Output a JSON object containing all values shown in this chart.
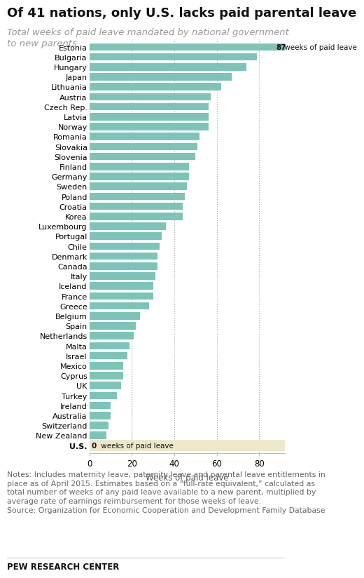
{
  "title": "Of 41 nations, only U.S. lacks paid parental leave",
  "subtitle": "Total weeks of paid leave mandated by national government\nto new parents",
  "xlabel": "Weeks of paid leave",
  "notes_line1": "Notes: Includes maternity leave, paternity leave and parental leave entitlements in",
  "notes_line2": "place as of April 2015. Estimates based on a “full-rate equivalent,” calculated as",
  "notes_line3": "total number of weeks of any paid leave available to a new parent, multiplied by",
  "notes_line4": "average rate of earnings reimbursement for those weeks of leave.",
  "notes_line5": "Source: Organization for Economic Cooperation and Development Family Database",
  "source_label": "PEW RESEARCH CENTER",
  "countries": [
    "Estonia",
    "Bulgaria",
    "Hungary",
    "Japan",
    "Lithuania",
    "Austria",
    "Czech Rep.",
    "Latvia",
    "Norway",
    "Romania",
    "Slovakia",
    "Slovenia",
    "Finland",
    "Germany",
    "Sweden",
    "Poland",
    "Croatia",
    "Korea",
    "Luxembourg",
    "Portugal",
    "Chile",
    "Denmark",
    "Canada",
    "Italy",
    "Iceland",
    "France",
    "Greece",
    "Belgium",
    "Spain",
    "Netherlands",
    "Malta",
    "Israel",
    "Mexico",
    "Cyprus",
    "UK",
    "Turkey",
    "Ireland",
    "Australia",
    "Switzerland",
    "New Zealand",
    "U.S."
  ],
  "values": [
    87,
    79,
    74,
    67,
    62,
    57,
    56,
    56,
    56,
    52,
    51,
    50,
    47,
    47,
    46,
    45,
    44,
    44,
    36,
    34,
    33,
    32,
    32,
    31,
    30,
    30,
    28,
    24,
    22,
    21,
    19,
    18,
    16,
    16,
    15,
    13,
    10,
    10,
    9,
    8,
    0
  ],
  "bar_color": "#7dc4b8",
  "us_bg_color": "#ede8cb",
  "dotted_line_color": "#aaaaaa",
  "annotation_bg": "#7dc4b8",
  "xlim_max": 92,
  "xticks": [
    0,
    20,
    40,
    60,
    80
  ],
  "bg_color": "#ffffff",
  "title_fontsize": 13,
  "subtitle_fontsize": 9.5,
  "notes_fontsize": 7.8,
  "bar_label_fontsize": 7.5,
  "ytick_fontsize": 8.0,
  "xtick_fontsize": 8.5,
  "bar_height": 0.75
}
